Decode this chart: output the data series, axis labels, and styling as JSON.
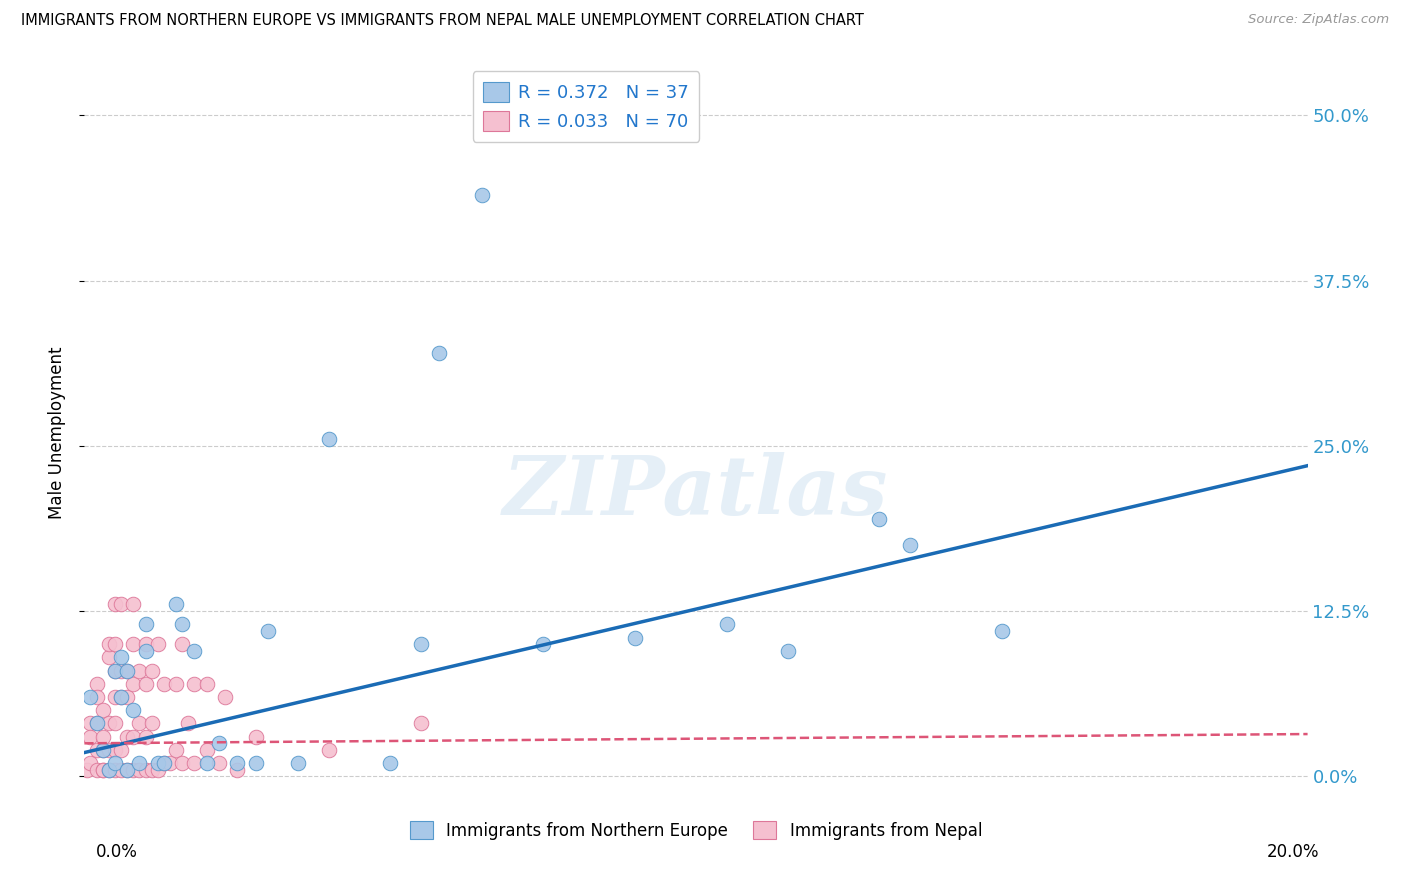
{
  "title": "IMMIGRANTS FROM NORTHERN EUROPE VS IMMIGRANTS FROM NEPAL MALE UNEMPLOYMENT CORRELATION CHART",
  "source": "Source: ZipAtlas.com",
  "ylabel": "Male Unemployment",
  "ytick_vals": [
    0.0,
    0.125,
    0.25,
    0.375,
    0.5
  ],
  "ytick_labels": [
    "0.0%",
    "12.5%",
    "25.0%",
    "37.5%",
    "50.0%"
  ],
  "xlim": [
    0.0,
    0.2
  ],
  "ylim": [
    -0.02,
    0.54
  ],
  "legend_blue_label": "R = 0.372   N = 37",
  "legend_pink_label": "R = 0.033   N = 70",
  "legend_blue_bottom": "Immigrants from Northern Europe",
  "legend_pink_bottom": "Immigrants from Nepal",
  "blue_color": "#a8c8e8",
  "blue_edge_color": "#5599cc",
  "pink_color": "#f5c0d0",
  "pink_edge_color": "#dd7799",
  "trendline_blue_color": "#1a6bb5",
  "trendline_pink_color": "#dd5577",
  "blue_trend_x": [
    0.0,
    0.2
  ],
  "blue_trend_y": [
    0.018,
    0.235
  ],
  "pink_trend_x": [
    0.0,
    0.2
  ],
  "pink_trend_y": [
    0.025,
    0.032
  ],
  "watermark": "ZIPatlas",
  "blue_points": [
    [
      0.001,
      0.06
    ],
    [
      0.002,
      0.04
    ],
    [
      0.003,
      0.02
    ],
    [
      0.004,
      0.005
    ],
    [
      0.005,
      0.08
    ],
    [
      0.005,
      0.01
    ],
    [
      0.006,
      0.06
    ],
    [
      0.006,
      0.09
    ],
    [
      0.007,
      0.005
    ],
    [
      0.007,
      0.08
    ],
    [
      0.008,
      0.05
    ],
    [
      0.009,
      0.01
    ],
    [
      0.01,
      0.115
    ],
    [
      0.01,
      0.095
    ],
    [
      0.012,
      0.01
    ],
    [
      0.013,
      0.01
    ],
    [
      0.015,
      0.13
    ],
    [
      0.016,
      0.115
    ],
    [
      0.018,
      0.095
    ],
    [
      0.02,
      0.01
    ],
    [
      0.022,
      0.025
    ],
    [
      0.025,
      0.01
    ],
    [
      0.028,
      0.01
    ],
    [
      0.03,
      0.11
    ],
    [
      0.035,
      0.01
    ],
    [
      0.04,
      0.255
    ],
    [
      0.05,
      0.01
    ],
    [
      0.055,
      0.1
    ],
    [
      0.058,
      0.32
    ],
    [
      0.065,
      0.44
    ],
    [
      0.075,
      0.1
    ],
    [
      0.09,
      0.105
    ],
    [
      0.105,
      0.115
    ],
    [
      0.115,
      0.095
    ],
    [
      0.135,
      0.175
    ],
    [
      0.15,
      0.11
    ],
    [
      0.13,
      0.195
    ]
  ],
  "pink_points": [
    [
      0.0005,
      0.005
    ],
    [
      0.001,
      0.01
    ],
    [
      0.001,
      0.04
    ],
    [
      0.001,
      0.03
    ],
    [
      0.002,
      0.005
    ],
    [
      0.002,
      0.02
    ],
    [
      0.002,
      0.04
    ],
    [
      0.002,
      0.07
    ],
    [
      0.002,
      0.06
    ],
    [
      0.003,
      0.005
    ],
    [
      0.003,
      0.02
    ],
    [
      0.003,
      0.005
    ],
    [
      0.003,
      0.03
    ],
    [
      0.003,
      0.05
    ],
    [
      0.004,
      0.005
    ],
    [
      0.004,
      0.02
    ],
    [
      0.004,
      0.04
    ],
    [
      0.004,
      0.09
    ],
    [
      0.004,
      0.1
    ],
    [
      0.005,
      0.005
    ],
    [
      0.005,
      0.02
    ],
    [
      0.005,
      0.04
    ],
    [
      0.005,
      0.06
    ],
    [
      0.005,
      0.08
    ],
    [
      0.005,
      0.1
    ],
    [
      0.005,
      0.13
    ],
    [
      0.006,
      0.005
    ],
    [
      0.006,
      0.02
    ],
    [
      0.006,
      0.06
    ],
    [
      0.006,
      0.08
    ],
    [
      0.006,
      0.13
    ],
    [
      0.007,
      0.005
    ],
    [
      0.007,
      0.03
    ],
    [
      0.007,
      0.06
    ],
    [
      0.007,
      0.08
    ],
    [
      0.008,
      0.005
    ],
    [
      0.008,
      0.03
    ],
    [
      0.008,
      0.07
    ],
    [
      0.008,
      0.1
    ],
    [
      0.008,
      0.13
    ],
    [
      0.009,
      0.005
    ],
    [
      0.009,
      0.04
    ],
    [
      0.009,
      0.08
    ],
    [
      0.01,
      0.005
    ],
    [
      0.01,
      0.03
    ],
    [
      0.01,
      0.07
    ],
    [
      0.01,
      0.1
    ],
    [
      0.011,
      0.005
    ],
    [
      0.011,
      0.04
    ],
    [
      0.011,
      0.08
    ],
    [
      0.012,
      0.005
    ],
    [
      0.012,
      0.1
    ],
    [
      0.013,
      0.01
    ],
    [
      0.013,
      0.07
    ],
    [
      0.014,
      0.01
    ],
    [
      0.015,
      0.02
    ],
    [
      0.015,
      0.07
    ],
    [
      0.016,
      0.01
    ],
    [
      0.016,
      0.1
    ],
    [
      0.017,
      0.04
    ],
    [
      0.018,
      0.01
    ],
    [
      0.018,
      0.07
    ],
    [
      0.02,
      0.02
    ],
    [
      0.02,
      0.07
    ],
    [
      0.022,
      0.01
    ],
    [
      0.023,
      0.06
    ],
    [
      0.025,
      0.005
    ],
    [
      0.028,
      0.03
    ],
    [
      0.04,
      0.02
    ],
    [
      0.055,
      0.04
    ]
  ]
}
